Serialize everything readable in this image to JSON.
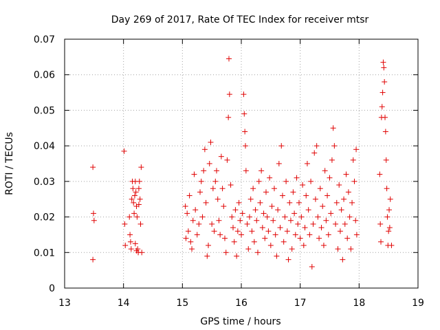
{
  "chart_data": {
    "type": "scatter",
    "title": "Day 269 of 2017, Rate Of TEC Index for receiver mtsr",
    "xlabel": "GPS time / hours",
    "ylabel": "ROTI / TECUs",
    "xlim": [
      13,
      19
    ],
    "ylim": [
      0,
      0.07
    ],
    "xticks": [
      13,
      14,
      15,
      16,
      17,
      18,
      19
    ],
    "xtick_labels": [
      "13",
      "14",
      "15",
      "16",
      "17",
      "18",
      "19"
    ],
    "yticks": [
      0,
      0.01,
      0.02,
      0.03,
      0.04,
      0.05,
      0.06,
      0.07
    ],
    "ytick_labels": [
      "0",
      "0.01",
      "0.02",
      "0.03",
      "0.04",
      "0.05",
      "0.06",
      "0.07"
    ],
    "grid": true,
    "marker": "+",
    "color": "#e00000",
    "series": [
      {
        "name": "ROTI",
        "points": [
          [
            13.48,
            0.034
          ],
          [
            13.49,
            0.021
          ],
          [
            13.5,
            0.019
          ],
          [
            13.48,
            0.008
          ],
          [
            14.01,
            0.0385
          ],
          [
            14.02,
            0.018
          ],
          [
            14.03,
            0.012
          ],
          [
            14.1,
            0.02
          ],
          [
            14.11,
            0.015
          ],
          [
            14.12,
            0.013
          ],
          [
            14.13,
            0.011
          ],
          [
            14.14,
            0.025
          ],
          [
            14.15,
            0.03
          ],
          [
            14.16,
            0.028
          ],
          [
            14.17,
            0.024
          ],
          [
            14.18,
            0.021
          ],
          [
            14.19,
            0.026
          ],
          [
            14.2,
            0.03
          ],
          [
            14.21,
            0.027
          ],
          [
            14.22,
            0.023
          ],
          [
            14.23,
            0.02
          ],
          [
            14.24,
            0.011
          ],
          [
            14.25,
            0.01
          ],
          [
            14.26,
            0.028
          ],
          [
            14.27,
            0.03
          ],
          [
            14.28,
            0.025
          ],
          [
            14.29,
            0.018
          ],
          [
            14.3,
            0.034
          ],
          [
            14.31,
            0.01
          ],
          [
            14.22,
            0.0105
          ],
          [
            14.2,
            0.0125
          ],
          [
            14.26,
            0.0235
          ],
          [
            15.05,
            0.023
          ],
          [
            15.06,
            0.014
          ],
          [
            15.08,
            0.021
          ],
          [
            15.1,
            0.016
          ],
          [
            15.12,
            0.026
          ],
          [
            15.14,
            0.013
          ],
          [
            15.16,
            0.011
          ],
          [
            15.18,
            0.019
          ],
          [
            15.2,
            0.032
          ],
          [
            15.22,
            0.022
          ],
          [
            15.25,
            0.015
          ],
          [
            15.28,
            0.018
          ],
          [
            15.3,
            0.027
          ],
          [
            15.32,
            0.03
          ],
          [
            15.34,
            0.02
          ],
          [
            15.36,
            0.033
          ],
          [
            15.38,
            0.039
          ],
          [
            15.4,
            0.024
          ],
          [
            15.42,
            0.009
          ],
          [
            15.44,
            0.012
          ],
          [
            15.46,
            0.035
          ],
          [
            15.48,
            0.041
          ],
          [
            15.5,
            0.018
          ],
          [
            15.52,
            0.028
          ],
          [
            15.54,
            0.016
          ],
          [
            15.56,
            0.03
          ],
          [
            15.58,
            0.033
          ],
          [
            15.6,
            0.025
          ],
          [
            15.62,
            0.019
          ],
          [
            15.64,
            0.015
          ],
          [
            15.66,
            0.037
          ],
          [
            15.68,
            0.028
          ],
          [
            15.7,
            0.023
          ],
          [
            15.72,
            0.014
          ],
          [
            15.74,
            0.01
          ],
          [
            15.76,
            0.036
          ],
          [
            15.78,
            0.048
          ],
          [
            15.79,
            0.0645
          ],
          [
            15.8,
            0.0545
          ],
          [
            15.82,
            0.029
          ],
          [
            15.84,
            0.02
          ],
          [
            15.86,
            0.017
          ],
          [
            15.88,
            0.013
          ],
          [
            15.9,
            0.022
          ],
          [
            15.92,
            0.009
          ],
          [
            15.94,
            0.016
          ],
          [
            15.96,
            0.024
          ],
          [
            15.98,
            0.019
          ],
          [
            16.0,
            0.015
          ],
          [
            16.02,
            0.021
          ],
          [
            16.04,
            0.0545
          ],
          [
            16.05,
            0.049
          ],
          [
            16.06,
            0.044
          ],
          [
            16.07,
            0.04
          ],
          [
            16.08,
            0.033
          ],
          [
            16.1,
            0.018
          ],
          [
            16.12,
            0.011
          ],
          [
            16.14,
            0.02
          ],
          [
            16.16,
            0.025
          ],
          [
            16.18,
            0.016
          ],
          [
            16.2,
            0.028
          ],
          [
            16.22,
            0.013
          ],
          [
            16.24,
            0.022
          ],
          [
            16.26,
            0.019
          ],
          [
            16.28,
            0.01
          ],
          [
            16.3,
            0.03
          ],
          [
            16.32,
            0.024
          ],
          [
            16.34,
            0.033
          ],
          [
            16.36,
            0.017
          ],
          [
            16.38,
            0.021
          ],
          [
            16.4,
            0.014
          ],
          [
            16.42,
            0.027
          ],
          [
            16.44,
            0.02
          ],
          [
            16.46,
            0.016
          ],
          [
            16.48,
            0.031
          ],
          [
            16.5,
            0.012
          ],
          [
            16.52,
            0.023
          ],
          [
            16.54,
            0.019
          ],
          [
            16.56,
            0.028
          ],
          [
            16.58,
            0.015
          ],
          [
            16.6,
            0.009
          ],
          [
            16.62,
            0.022
          ],
          [
            16.64,
            0.035
          ],
          [
            16.66,
            0.017
          ],
          [
            16.68,
            0.04
          ],
          [
            16.7,
            0.026
          ],
          [
            16.72,
            0.013
          ],
          [
            16.74,
            0.02
          ],
          [
            16.76,
            0.03
          ],
          [
            16.78,
            0.016
          ],
          [
            16.8,
            0.008
          ],
          [
            16.82,
            0.024
          ],
          [
            16.84,
            0.019
          ],
          [
            16.86,
            0.011
          ],
          [
            16.88,
            0.027
          ],
          [
            16.9,
            0.021
          ],
          [
            16.92,
            0.015
          ],
          [
            16.94,
            0.031
          ],
          [
            16.96,
            0.018
          ],
          [
            16.98,
            0.024
          ],
          [
            17.0,
            0.014
          ],
          [
            17.02,
            0.02
          ],
          [
            17.04,
            0.029
          ],
          [
            17.06,
            0.012
          ],
          [
            17.08,
            0.017
          ],
          [
            17.1,
            0.026
          ],
          [
            17.12,
            0.035
          ],
          [
            17.14,
            0.022
          ],
          [
            17.16,
            0.015
          ],
          [
            17.18,
            0.03
          ],
          [
            17.2,
            0.006
          ],
          [
            17.22,
            0.018
          ],
          [
            17.24,
            0.038
          ],
          [
            17.26,
            0.025
          ],
          [
            17.28,
            0.04
          ],
          [
            17.3,
            0.02
          ],
          [
            17.32,
            0.014
          ],
          [
            17.34,
            0.028
          ],
          [
            17.36,
            0.017
          ],
          [
            17.38,
            0.023
          ],
          [
            17.4,
            0.012
          ],
          [
            17.42,
            0.033
          ],
          [
            17.44,
            0.019
          ],
          [
            17.46,
            0.026
          ],
          [
            17.48,
            0.015
          ],
          [
            17.5,
            0.031
          ],
          [
            17.52,
            0.021
          ],
          [
            17.54,
            0.036
          ],
          [
            17.56,
            0.045
          ],
          [
            17.58,
            0.04
          ],
          [
            17.6,
            0.018
          ],
          [
            17.62,
            0.024
          ],
          [
            17.64,
            0.011
          ],
          [
            17.66,
            0.029
          ],
          [
            17.68,
            0.016
          ],
          [
            17.7,
            0.022
          ],
          [
            17.72,
            0.008
          ],
          [
            17.74,
            0.025
          ],
          [
            17.76,
            0.018
          ],
          [
            17.78,
            0.032
          ],
          [
            17.8,
            0.014
          ],
          [
            17.82,
            0.027
          ],
          [
            17.84,
            0.02
          ],
          [
            17.86,
            0.011
          ],
          [
            17.88,
            0.024
          ],
          [
            17.9,
            0.036
          ],
          [
            17.92,
            0.03
          ],
          [
            17.94,
            0.019
          ],
          [
            17.95,
            0.039
          ],
          [
            17.96,
            0.015
          ],
          [
            18.35,
            0.032
          ],
          [
            18.36,
            0.018
          ],
          [
            18.37,
            0.013
          ],
          [
            18.38,
            0.048
          ],
          [
            18.39,
            0.051
          ],
          [
            18.4,
            0.055
          ],
          [
            18.41,
            0.0635
          ],
          [
            18.42,
            0.062
          ],
          [
            18.43,
            0.058
          ],
          [
            18.44,
            0.048
          ],
          [
            18.45,
            0.044
          ],
          [
            18.46,
            0.036
          ],
          [
            18.47,
            0.028
          ],
          [
            18.48,
            0.02
          ],
          [
            18.49,
            0.012
          ],
          [
            18.5,
            0.016
          ],
          [
            18.51,
            0.022
          ],
          [
            18.52,
            0.017
          ],
          [
            18.53,
            0.025
          ],
          [
            18.55,
            0.012
          ]
        ]
      }
    ]
  }
}
